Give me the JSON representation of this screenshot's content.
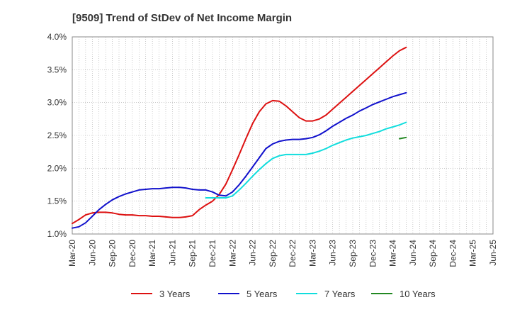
{
  "chart_data": {
    "type": "line",
    "title": "[9509]  Trend of StDev of Net Income Margin",
    "xlabel": "",
    "ylabel": "",
    "x_tick_labels": [
      "Mar-20",
      "Jun-20",
      "Sep-20",
      "Dec-20",
      "Mar-21",
      "Jun-21",
      "Sep-21",
      "Dec-21",
      "Mar-22",
      "Jun-22",
      "Sep-22",
      "Dec-22",
      "Mar-23",
      "Jun-23",
      "Sep-23",
      "Dec-23",
      "Mar-24",
      "Jun-24",
      "Sep-24",
      "Dec-24",
      "Mar-25",
      "Jun-25"
    ],
    "y_tick_labels": [
      "1.0%",
      "1.5%",
      "2.0%",
      "2.5%",
      "3.0%",
      "3.5%",
      "4.0%"
    ],
    "ylim": [
      1.0,
      4.0
    ],
    "y_unit": "%",
    "grid": true,
    "legend_position": "bottom",
    "series": [
      {
        "name": "3 Years",
        "color": "#dd1111",
        "points": [
          [
            0,
            1.16
          ],
          [
            1,
            1.22
          ],
          [
            2,
            1.29
          ],
          [
            3,
            1.32
          ],
          [
            4,
            1.33
          ],
          [
            5,
            1.33
          ],
          [
            6,
            1.32
          ],
          [
            7,
            1.3
          ],
          [
            8,
            1.29
          ],
          [
            9,
            1.29
          ],
          [
            10,
            1.28
          ],
          [
            11,
            1.28
          ],
          [
            12,
            1.27
          ],
          [
            13,
            1.27
          ],
          [
            14,
            1.26
          ],
          [
            15,
            1.25
          ],
          [
            16,
            1.25
          ],
          [
            17,
            1.26
          ],
          [
            18,
            1.28
          ],
          [
            19,
            1.37
          ],
          [
            20,
            1.44
          ],
          [
            21,
            1.5
          ],
          [
            22,
            1.6
          ],
          [
            23,
            1.76
          ],
          [
            24,
            1.98
          ],
          [
            25,
            2.21
          ],
          [
            26,
            2.45
          ],
          [
            27,
            2.68
          ],
          [
            28,
            2.86
          ],
          [
            29,
            2.98
          ],
          [
            30,
            3.03
          ],
          [
            31,
            3.02
          ],
          [
            32,
            2.95
          ],
          [
            33,
            2.86
          ],
          [
            34,
            2.77
          ],
          [
            35,
            2.72
          ],
          [
            36,
            2.72
          ],
          [
            37,
            2.75
          ],
          [
            38,
            2.81
          ],
          [
            39,
            2.9
          ],
          [
            40,
            2.99
          ],
          [
            41,
            3.08
          ],
          [
            42,
            3.17
          ],
          [
            43,
            3.26
          ],
          [
            44,
            3.35
          ],
          [
            45,
            3.44
          ],
          [
            46,
            3.53
          ],
          [
            47,
            3.62
          ],
          [
            48,
            3.71
          ],
          [
            49,
            3.79
          ],
          [
            50,
            3.84
          ]
        ]
      },
      {
        "name": "5 Years",
        "color": "#1111cc",
        "points": [
          [
            0,
            1.09
          ],
          [
            1,
            1.11
          ],
          [
            2,
            1.17
          ],
          [
            3,
            1.27
          ],
          [
            4,
            1.37
          ],
          [
            5,
            1.45
          ],
          [
            6,
            1.52
          ],
          [
            7,
            1.57
          ],
          [
            8,
            1.61
          ],
          [
            9,
            1.64
          ],
          [
            10,
            1.67
          ],
          [
            11,
            1.68
          ],
          [
            12,
            1.69
          ],
          [
            13,
            1.69
          ],
          [
            14,
            1.7
          ],
          [
            15,
            1.71
          ],
          [
            16,
            1.71
          ],
          [
            17,
            1.7
          ],
          [
            18,
            1.68
          ],
          [
            19,
            1.67
          ],
          [
            20,
            1.67
          ],
          [
            21,
            1.64
          ],
          [
            22,
            1.59
          ],
          [
            23,
            1.58
          ],
          [
            24,
            1.64
          ],
          [
            25,
            1.75
          ],
          [
            26,
            1.88
          ],
          [
            27,
            2.02
          ],
          [
            28,
            2.16
          ],
          [
            29,
            2.3
          ],
          [
            30,
            2.37
          ],
          [
            31,
            2.41
          ],
          [
            32,
            2.43
          ],
          [
            33,
            2.44
          ],
          [
            34,
            2.44
          ],
          [
            35,
            2.45
          ],
          [
            36,
            2.47
          ],
          [
            37,
            2.51
          ],
          [
            38,
            2.57
          ],
          [
            39,
            2.64
          ],
          [
            40,
            2.7
          ],
          [
            41,
            2.76
          ],
          [
            42,
            2.81
          ],
          [
            43,
            2.87
          ],
          [
            44,
            2.92
          ],
          [
            45,
            2.97
          ],
          [
            46,
            3.01
          ],
          [
            47,
            3.05
          ],
          [
            48,
            3.09
          ],
          [
            49,
            3.12
          ],
          [
            50,
            3.15
          ]
        ]
      },
      {
        "name": "7 Years",
        "color": "#11dddd",
        "points": [
          [
            20,
            1.55
          ],
          [
            21,
            1.55
          ],
          [
            22,
            1.55
          ],
          [
            23,
            1.55
          ],
          [
            24,
            1.58
          ],
          [
            25,
            1.67
          ],
          [
            26,
            1.77
          ],
          [
            27,
            1.88
          ],
          [
            28,
            1.98
          ],
          [
            29,
            2.07
          ],
          [
            30,
            2.15
          ],
          [
            31,
            2.19
          ],
          [
            32,
            2.21
          ],
          [
            33,
            2.21
          ],
          [
            34,
            2.21
          ],
          [
            35,
            2.21
          ],
          [
            36,
            2.23
          ],
          [
            37,
            2.26
          ],
          [
            38,
            2.3
          ],
          [
            39,
            2.35
          ],
          [
            40,
            2.39
          ],
          [
            41,
            2.43
          ],
          [
            42,
            2.46
          ],
          [
            43,
            2.48
          ],
          [
            44,
            2.5
          ],
          [
            45,
            2.53
          ],
          [
            46,
            2.56
          ],
          [
            47,
            2.6
          ],
          [
            48,
            2.63
          ],
          [
            49,
            2.66
          ],
          [
            50,
            2.7
          ]
        ]
      },
      {
        "name": "10 Years",
        "color": "#228822",
        "points": [
          [
            49,
            2.45
          ],
          [
            50,
            2.47
          ]
        ]
      }
    ]
  }
}
